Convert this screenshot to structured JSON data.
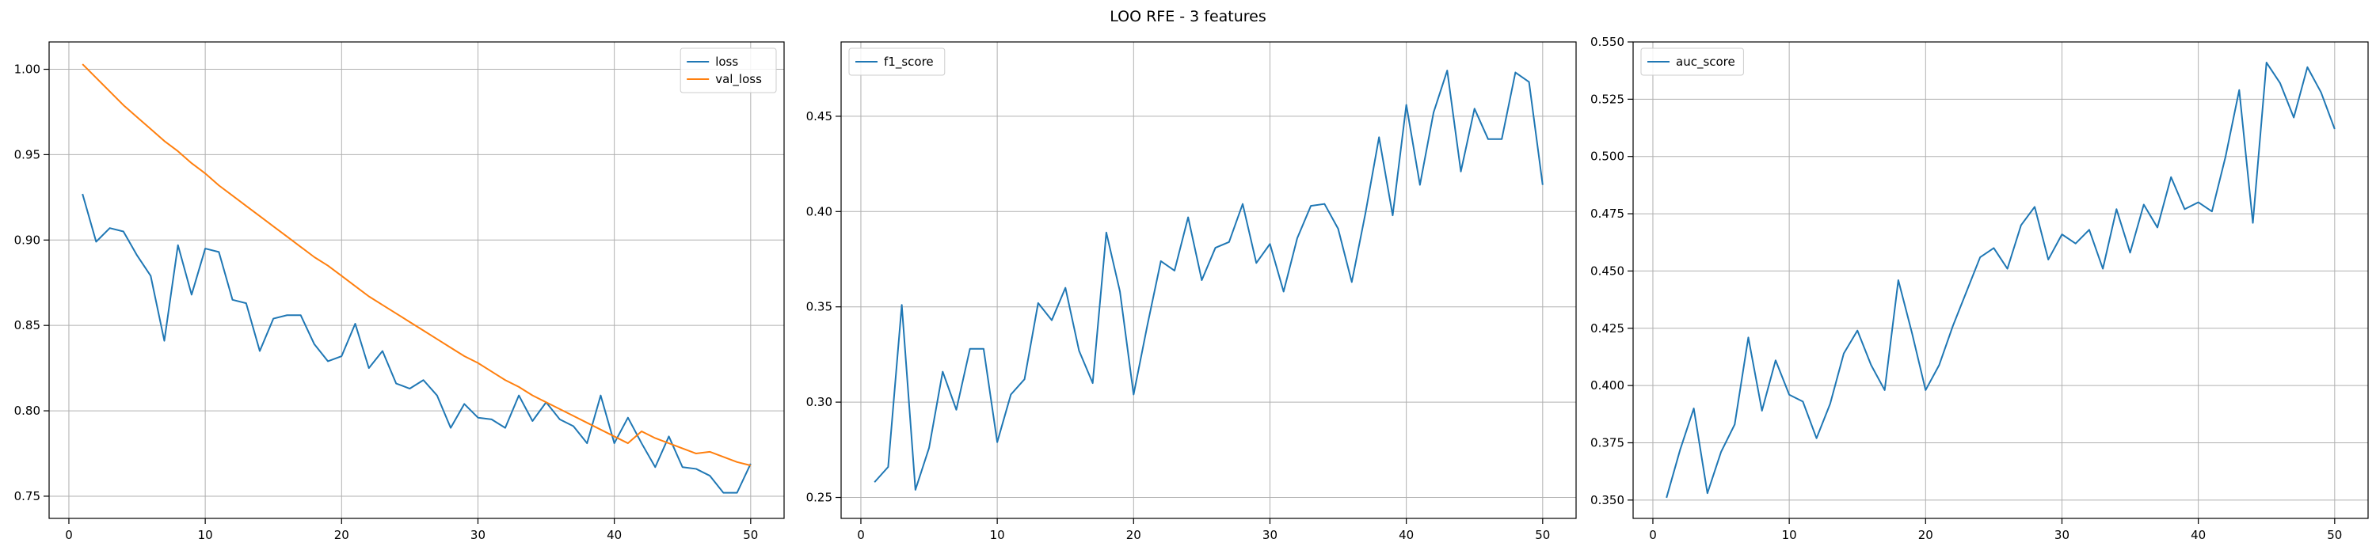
{
  "figure": {
    "suptitle": "LOO RFE - 3 features"
  },
  "chart_data": [
    {
      "type": "line",
      "title": "",
      "xlabel": "",
      "ylabel": "",
      "xlim": [
        -1.45,
        52.45
      ],
      "ylim": [
        0.737,
        1.016
      ],
      "xticks": [
        0,
        10,
        20,
        30,
        40,
        50
      ],
      "yticks": [
        0.75,
        0.8,
        0.85,
        0.9,
        0.95,
        1.0
      ],
      "ytick_labels": [
        "0.75",
        "0.80",
        "0.85",
        "0.90",
        "0.95",
        "1.00"
      ],
      "grid": true,
      "legend": "upper right",
      "series": [
        {
          "name": "loss",
          "color": "#1f77b4",
          "x": [
            1,
            2,
            3,
            4,
            5,
            6,
            7,
            8,
            9,
            10,
            11,
            12,
            13,
            14,
            15,
            16,
            17,
            18,
            19,
            20,
            21,
            22,
            23,
            24,
            25,
            26,
            27,
            28,
            29,
            30,
            31,
            32,
            33,
            34,
            35,
            36,
            37,
            38,
            39,
            40,
            41,
            42,
            43,
            44,
            45,
            46,
            47,
            48,
            49,
            50
          ],
          "values": [
            0.927,
            0.899,
            0.907,
            0.905,
            0.891,
            0.879,
            0.841,
            0.897,
            0.868,
            0.895,
            0.893,
            0.865,
            0.863,
            0.835,
            0.854,
            0.856,
            0.856,
            0.839,
            0.829,
            0.832,
            0.851,
            0.825,
            0.835,
            0.816,
            0.813,
            0.818,
            0.809,
            0.79,
            0.804,
            0.796,
            0.795,
            0.79,
            0.809,
            0.794,
            0.805,
            0.795,
            0.791,
            0.781,
            0.809,
            0.781,
            0.796,
            0.781,
            0.767,
            0.785,
            0.767,
            0.766,
            0.762,
            0.752,
            0.752,
            0.769
          ]
        },
        {
          "name": "val_loss",
          "color": "#ff7f0e",
          "x": [
            1,
            2,
            3,
            4,
            5,
            6,
            7,
            8,
            9,
            10,
            11,
            12,
            13,
            14,
            15,
            16,
            17,
            18,
            19,
            20,
            21,
            22,
            23,
            24,
            25,
            26,
            27,
            28,
            29,
            30,
            31,
            32,
            33,
            34,
            35,
            36,
            37,
            38,
            39,
            40,
            41,
            42,
            43,
            44,
            45,
            46,
            47,
            48,
            49,
            50
          ],
          "values": [
            1.003,
            0.995,
            0.987,
            0.979,
            0.972,
            0.965,
            0.958,
            0.952,
            0.945,
            0.939,
            0.932,
            0.926,
            0.92,
            0.914,
            0.908,
            0.902,
            0.896,
            0.89,
            0.885,
            0.879,
            0.873,
            0.867,
            0.862,
            0.857,
            0.852,
            0.847,
            0.842,
            0.837,
            0.832,
            0.828,
            0.823,
            0.818,
            0.814,
            0.809,
            0.805,
            0.801,
            0.797,
            0.793,
            0.789,
            0.785,
            0.781,
            0.788,
            0.784,
            0.781,
            0.778,
            0.775,
            0.776,
            0.773,
            0.77,
            0.768
          ]
        }
      ]
    },
    {
      "type": "line",
      "title": "",
      "xlabel": "",
      "ylabel": "",
      "xlim": [
        -1.45,
        52.45
      ],
      "ylim": [
        0.239,
        0.489
      ],
      "xticks": [
        0,
        10,
        20,
        30,
        40,
        50
      ],
      "yticks": [
        0.25,
        0.3,
        0.35,
        0.4,
        0.45
      ],
      "ytick_labels": [
        "0.25",
        "0.30",
        "0.35",
        "0.40",
        "0.45"
      ],
      "grid": true,
      "legend": "upper left",
      "series": [
        {
          "name": "f1_score",
          "color": "#1f77b4",
          "x": [
            1,
            2,
            3,
            4,
            5,
            6,
            7,
            8,
            9,
            10,
            11,
            12,
            13,
            14,
            15,
            16,
            17,
            18,
            19,
            20,
            21,
            22,
            23,
            24,
            25,
            26,
            27,
            28,
            29,
            30,
            31,
            32,
            33,
            34,
            35,
            36,
            37,
            38,
            39,
            40,
            41,
            42,
            43,
            44,
            45,
            46,
            47,
            48,
            49,
            50
          ],
          "values": [
            0.258,
            0.266,
            0.351,
            0.254,
            0.276,
            0.316,
            0.296,
            0.328,
            0.328,
            0.279,
            0.304,
            0.312,
            0.352,
            0.343,
            0.36,
            0.327,
            0.31,
            0.389,
            0.358,
            0.304,
            0.34,
            0.374,
            0.369,
            0.397,
            0.364,
            0.381,
            0.384,
            0.404,
            0.373,
            0.383,
            0.358,
            0.386,
            0.403,
            0.404,
            0.391,
            0.363,
            0.399,
            0.439,
            0.398,
            0.456,
            0.414,
            0.452,
            0.474,
            0.421,
            0.454,
            0.438,
            0.438,
            0.473,
            0.468,
            0.414
          ]
        }
      ]
    },
    {
      "type": "line",
      "title": "",
      "xlabel": "",
      "ylabel": "",
      "xlim": [
        -1.45,
        52.45
      ],
      "ylim": [
        0.342,
        0.55
      ],
      "xticks": [
        0,
        10,
        20,
        30,
        40,
        50
      ],
      "yticks": [
        0.35,
        0.375,
        0.4,
        0.425,
        0.45,
        0.475,
        0.5,
        0.525,
        0.55
      ],
      "ytick_labels": [
        "0.350",
        "0.375",
        "0.400",
        "0.425",
        "0.450",
        "0.475",
        "0.500",
        "0.525",
        "0.550"
      ],
      "grid": true,
      "legend": "upper left",
      "series": [
        {
          "name": "auc_score",
          "color": "#1f77b4",
          "x": [
            1,
            2,
            3,
            4,
            5,
            6,
            7,
            8,
            9,
            10,
            11,
            12,
            13,
            14,
            15,
            16,
            17,
            18,
            19,
            20,
            21,
            22,
            23,
            24,
            25,
            26,
            27,
            28,
            29,
            30,
            31,
            32,
            33,
            34,
            35,
            36,
            37,
            38,
            39,
            40,
            41,
            42,
            43,
            44,
            45,
            46,
            47,
            48,
            49,
            50
          ],
          "values": [
            0.351,
            0.372,
            0.39,
            0.353,
            0.371,
            0.383,
            0.421,
            0.389,
            0.411,
            0.396,
            0.393,
            0.377,
            0.392,
            0.414,
            0.424,
            0.409,
            0.398,
            0.446,
            0.423,
            0.398,
            0.409,
            0.426,
            0.441,
            0.456,
            0.46,
            0.451,
            0.47,
            0.478,
            0.455,
            0.466,
            0.462,
            0.468,
            0.451,
            0.477,
            0.458,
            0.479,
            0.469,
            0.491,
            0.477,
            0.48,
            0.476,
            0.5,
            0.529,
            0.471,
            0.541,
            0.532,
            0.517,
            0.539,
            0.528,
            0.512
          ]
        }
      ]
    }
  ]
}
